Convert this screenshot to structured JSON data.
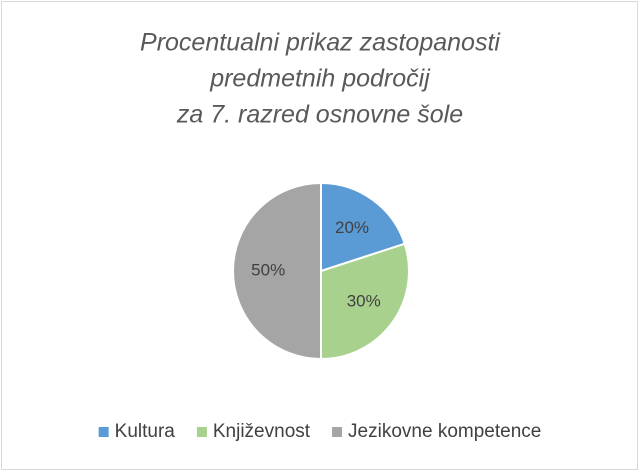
{
  "chart_data": {
    "type": "pie",
    "title": [
      "Procentualni prikaz zastopanosti",
      "predmetnih področij",
      "za 7. razred osnovne šole"
    ],
    "categories": [
      "Kultura",
      "Književnost",
      "Jezikovne kompetence"
    ],
    "values": [
      20,
      30,
      50
    ],
    "value_labels": [
      "20%",
      "30%",
      "50%"
    ],
    "colors": [
      "#5b9bd5",
      "#a9d18e",
      "#a5a5a5"
    ],
    "legend": "bottom"
  }
}
